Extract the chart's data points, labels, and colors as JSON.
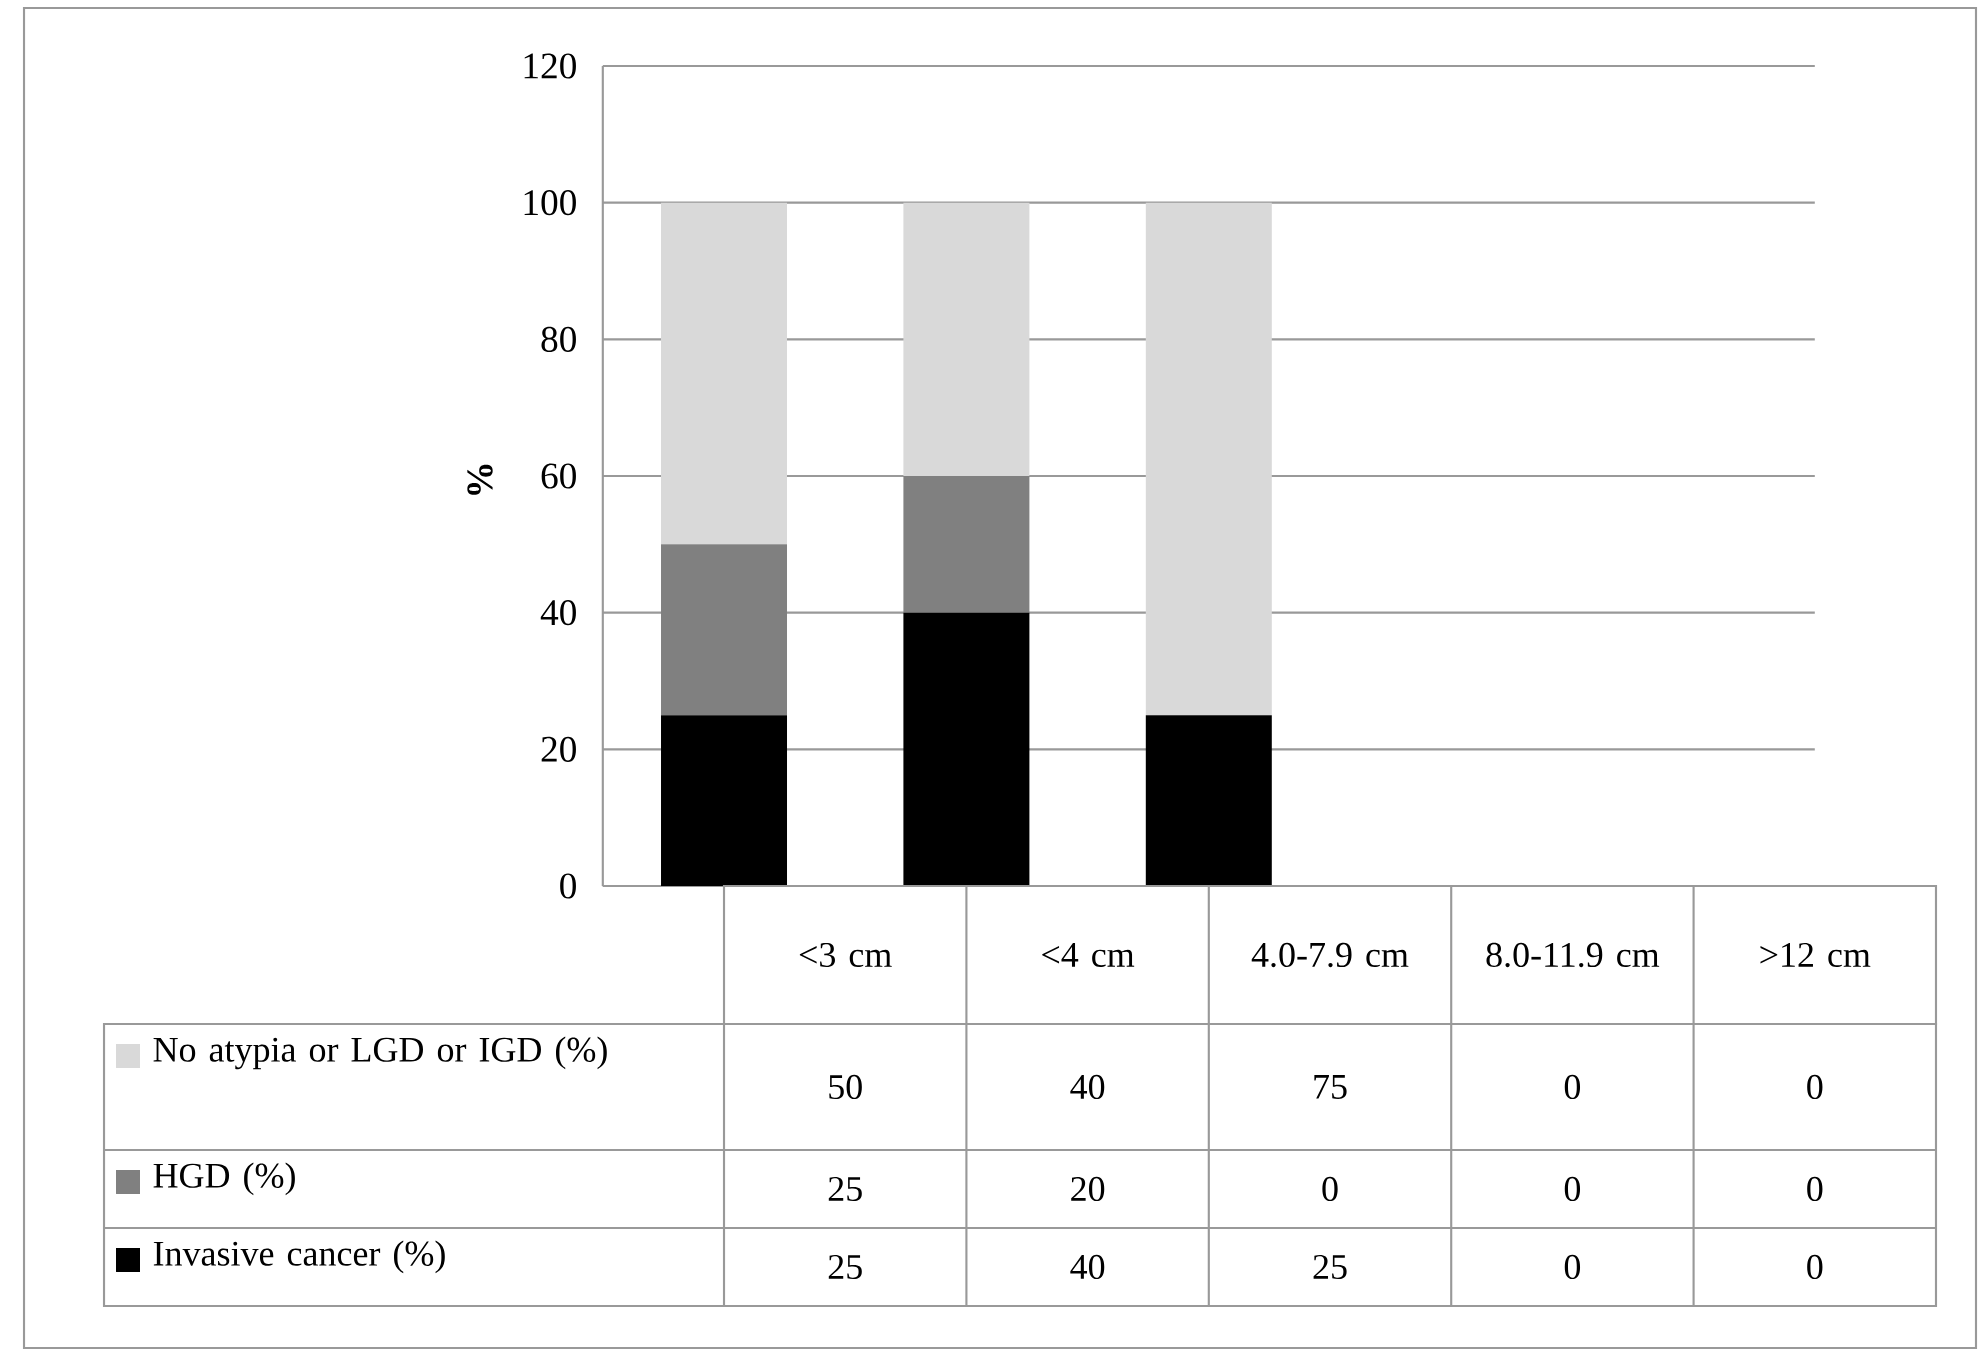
{
  "chart_data": {
    "type": "bar",
    "stacked": true,
    "ylabel": "%",
    "categories": [
      "<3 cm",
      "<4 cm",
      "4.0-7.9 cm",
      "8.0-11.9 cm",
      ">12 cm"
    ],
    "series": [
      {
        "name": "Invasive cancer (%)",
        "color": "#000000",
        "values": [
          25,
          40,
          25,
          0,
          0
        ]
      },
      {
        "name": "HGD (%)",
        "color": "#808080",
        "values": [
          25,
          20,
          0,
          0,
          0
        ]
      },
      {
        "name": "No atypia or LGD or IGD (%)",
        "color": "#d9d9d9",
        "values": [
          50,
          40,
          75,
          0,
          0
        ]
      }
    ],
    "ylim": [
      0,
      120
    ],
    "yticks": [
      0,
      20,
      40,
      60,
      80,
      100,
      120
    ],
    "grid": "y",
    "data_labels": true,
    "legend": "bottom"
  }
}
